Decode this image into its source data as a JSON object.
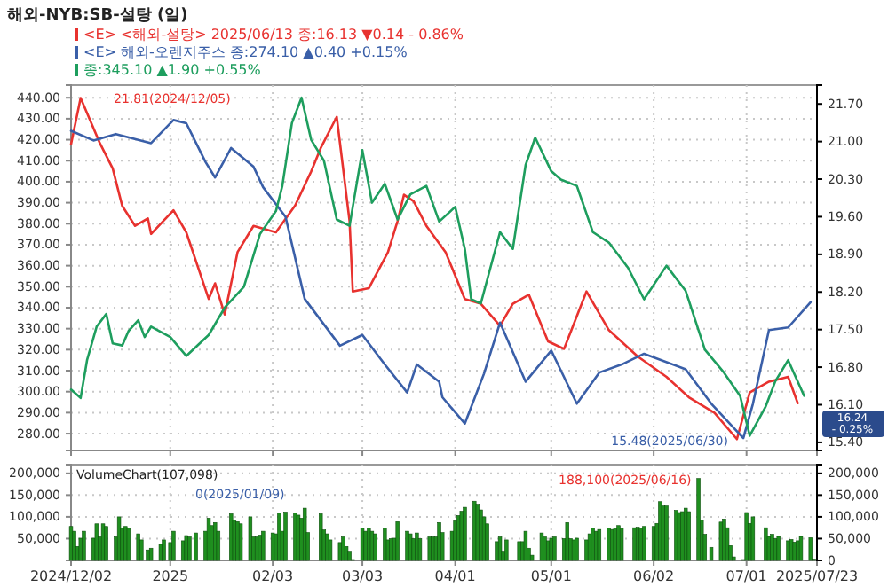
{
  "chart_data": [
    {
      "type": "line",
      "title": "해외-NYB:SB-설탕 (일)",
      "legend": "top left",
      "grid": true,
      "tick_labels": "y",
      "xlim": [
        "2024-12-02",
        "2025-07-23"
      ],
      "xticks": [
        {
          "value": "2024-12-02",
          "label": null
        },
        {
          "value": "2025-01-02",
          "label": null
        },
        {
          "value": "2025-02-03",
          "label": null
        },
        {
          "value": "2025-03-03",
          "label": null
        },
        {
          "value": "2025-04-01",
          "label": null
        },
        {
          "value": "2025-05-01",
          "label": null
        },
        {
          "value": "2025-06-02",
          "label": null
        },
        {
          "value": "2025-07-01",
          "label": null
        }
      ],
      "ylim": [
        272,
        446
      ],
      "yticks": [
        {
          "value": 280,
          "label": "280.00"
        },
        {
          "value": 290,
          "label": "290.00"
        },
        {
          "value": 300,
          "label": "300.00"
        },
        {
          "value": 310,
          "label": "310.00"
        },
        {
          "value": 320,
          "label": "320.00"
        },
        {
          "value": 330,
          "label": "330.00"
        },
        {
          "value": 340,
          "label": "340.00"
        },
        {
          "value": 350,
          "label": "350.00"
        },
        {
          "value": 360,
          "label": "360.00"
        },
        {
          "value": 370,
          "label": "370.00"
        },
        {
          "value": 380,
          "label": "380.00"
        },
        {
          "value": 390,
          "label": "390.00"
        },
        {
          "value": 400,
          "label": "400.00"
        },
        {
          "value": 410,
          "label": "410.00"
        },
        {
          "value": 420,
          "label": "420.00"
        },
        {
          "value": 430,
          "label": "430.00"
        },
        {
          "value": 440,
          "label": "440.00"
        }
      ],
      "y2lim": [
        15.25,
        22.05
      ],
      "y2ticks": [
        {
          "value": 15.4,
          "label": "15.40"
        },
        {
          "value": 16.1,
          "label": "16.10"
        },
        {
          "value": 16.8,
          "label": "16.80"
        },
        {
          "value": 17.5,
          "label": "17.50"
        },
        {
          "value": 18.2,
          "label": "18.20"
        },
        {
          "value": 18.9,
          "label": "18.90"
        },
        {
          "value": 19.6,
          "label": "19.60"
        },
        {
          "value": 20.3,
          "label": "20.30"
        },
        {
          "value": 21.0,
          "label": "21.00"
        },
        {
          "value": 21.7,
          "label": "21.70"
        }
      ],
      "series": [
        {
          "name": "<E> <해외-설탕> 2025/06/13 종:16.13 ▼0.14 - 0.86%",
          "color": "#e8322f",
          "axis": "y2",
          "x": [
            "2024-12-02",
            "2024-12-05",
            "2024-12-11",
            "2024-12-15",
            "2024-12-18",
            "2024-12-22",
            "2024-12-26",
            "2024-12-27",
            "2025-01-03",
            "2025-01-07",
            "2025-01-14",
            "2025-01-16",
            "2025-01-19",
            "2025-01-23",
            "2025-01-28",
            "2025-02-04",
            "2025-02-10",
            "2025-02-15",
            "2025-02-18",
            "2025-02-23",
            "2025-02-27",
            "2025-02-28",
            "2025-03-05",
            "2025-03-11",
            "2025-03-14",
            "2025-03-16",
            "2025-03-19",
            "2025-03-23",
            "2025-03-29",
            "2025-04-04",
            "2025-04-09",
            "2025-04-15",
            "2025-04-19",
            "2025-04-24",
            "2025-04-30",
            "2025-05-05",
            "2025-05-12",
            "2025-05-19",
            "2025-05-28",
            "2025-06-06",
            "2025-06-13",
            "2025-06-21",
            "2025-06-28",
            "2025-07-02",
            "2025-07-08",
            "2025-07-14",
            "2025-07-17"
          ],
          "values": [
            20.95,
            21.81,
            20.97,
            20.5,
            19.8,
            19.43,
            19.57,
            19.28,
            19.72,
            19.31,
            18.07,
            18.36,
            17.78,
            18.94,
            19.43,
            19.31,
            19.81,
            20.44,
            20.88,
            21.46,
            19.52,
            18.21,
            18.27,
            18.94,
            19.52,
            20.01,
            19.89,
            19.43,
            18.94,
            18.07,
            17.98,
            17.57,
            17.98,
            18.15,
            17.28,
            17.14,
            18.21,
            17.49,
            17.0,
            16.62,
            16.24,
            15.95,
            15.46,
            16.33,
            16.53,
            16.62,
            16.13
          ]
        },
        {
          "name": "<E> 해외-오렌지주스 종:274.10 ▲0.40 +0.15%",
          "color": "#3a5fa8",
          "axis": "y2",
          "x": [
            "2024-12-02",
            "2024-12-09",
            "2024-12-16",
            "2024-12-27",
            "2025-01-03",
            "2025-01-07",
            "2025-01-13",
            "2025-01-16",
            "2025-01-21",
            "2025-01-28",
            "2025-01-31",
            "2025-02-07",
            "2025-02-13",
            "2025-02-24",
            "2025-03-03",
            "2025-03-10",
            "2025-03-17",
            "2025-03-20",
            "2025-03-27",
            "2025-03-28",
            "2025-04-04",
            "2025-04-10",
            "2025-04-15",
            "2025-04-23",
            "2025-05-01",
            "2025-05-09",
            "2025-05-16",
            "2025-05-23",
            "2025-05-30",
            "2025-06-12",
            "2025-06-20",
            "2025-06-30",
            "2025-07-03",
            "2025-07-08",
            "2025-07-14",
            "2025-07-21"
          ],
          "values": [
            21.2,
            21.02,
            21.14,
            20.97,
            21.4,
            21.34,
            20.62,
            20.33,
            20.88,
            20.53,
            20.15,
            19.6,
            18.07,
            17.2,
            17.4,
            16.85,
            16.33,
            16.85,
            16.53,
            16.24,
            15.75,
            16.68,
            17.63,
            16.53,
            17.11,
            16.12,
            16.7,
            16.85,
            17.05,
            16.76,
            16.12,
            15.48,
            16.12,
            17.49,
            17.54,
            18.01
          ]
        },
        {
          "name": "종:345.10 ▲1.90 +0.55%",
          "color": "#1e9e5e",
          "axis": "y",
          "x": [
            "2024-12-02",
            "2024-12-05",
            "2024-12-07",
            "2024-12-10",
            "2024-12-13",
            "2024-12-15",
            "2024-12-18",
            "2024-12-20",
            "2024-12-23",
            "2024-12-25",
            "2024-12-27",
            "2025-01-02",
            "2025-01-07",
            "2025-01-14",
            "2025-01-19",
            "2025-01-25",
            "2025-01-30",
            "2025-02-04",
            "2025-02-06",
            "2025-02-09",
            "2025-02-12",
            "2025-02-15",
            "2025-02-19",
            "2025-02-23",
            "2025-02-27",
            "2025-03-03",
            "2025-03-06",
            "2025-03-10",
            "2025-03-14",
            "2025-03-18",
            "2025-03-23",
            "2025-03-27",
            "2025-04-01",
            "2025-04-04",
            "2025-04-06",
            "2025-04-09",
            "2025-04-12",
            "2025-04-15",
            "2025-04-19",
            "2025-04-23",
            "2025-04-26",
            "2025-05-01",
            "2025-05-04",
            "2025-05-09",
            "2025-05-14",
            "2025-05-19",
            "2025-05-25",
            "2025-05-30",
            "2025-06-06",
            "2025-06-12",
            "2025-06-18",
            "2025-06-24",
            "2025-06-29",
            "2025-07-02",
            "2025-07-07",
            "2025-07-10",
            "2025-07-14",
            "2025-07-19"
          ],
          "values": [
            301,
            297,
            315,
            331,
            337,
            323,
            322,
            329,
            334,
            326,
            331,
            326,
            317,
            327,
            340,
            350,
            375,
            386,
            398,
            428,
            440,
            420,
            410,
            382,
            379,
            415,
            390,
            399,
            382,
            394,
            398,
            381,
            388,
            368,
            344,
            342,
            359,
            376,
            368,
            408,
            421,
            405,
            401,
            398,
            376,
            371,
            359,
            344,
            360,
            348,
            320,
            309,
            298,
            279,
            293,
            305,
            315,
            298
          ]
        }
      ],
      "annotations": [
        "21.81(2024/12/05)",
        "15.48(2025/06/30)",
        "16.24 - 0.25%"
      ]
    },
    {
      "type": "bar",
      "grid": true,
      "color": "#1f8f1f",
      "xlim": [
        "2024-12-02",
        "2025-07-23"
      ],
      "xticks": [
        {
          "value": "2024-12-02",
          "label": "2024/12/02"
        },
        {
          "value": "2025-01-02",
          "label": "2025"
        },
        {
          "value": "2025-02-03",
          "label": "02/03"
        },
        {
          "value": "2025-03-03",
          "label": "03/03"
        },
        {
          "value": "2025-04-01",
          "label": "04/01"
        },
        {
          "value": "2025-05-01",
          "label": "05/01"
        },
        {
          "value": "2025-06-02",
          "label": "06/02"
        },
        {
          "value": "2025-07-01",
          "label": "07/01"
        },
        {
          "value": "2025-07-23",
          "label": "2025/07/23"
        }
      ],
      "ylim": [
        0,
        220000
      ],
      "yticks": [
        {
          "value": 50000,
          "label": "50,000"
        },
        {
          "value": 100000,
          "label": "100,000"
        },
        {
          "value": 150000,
          "label": "150,000"
        },
        {
          "value": 200000,
          "label": "200,000"
        }
      ],
      "y2lim": [
        0,
        220000
      ],
      "y2ticks": [
        {
          "value": 0,
          "label": "0"
        },
        {
          "value": 50000,
          "label": "50,000"
        },
        {
          "value": 100000,
          "label": "100,000"
        },
        {
          "value": 150000,
          "label": "150,000"
        },
        {
          "value": 200000,
          "label": "200,000"
        }
      ],
      "x": [
        "2024-12-02",
        "2024-12-03",
        "2024-12-04",
        "2024-12-05",
        "2024-12-06",
        "2024-12-09",
        "2024-12-10",
        "2024-12-11",
        "2024-12-12",
        "2024-12-13",
        "2024-12-16",
        "2024-12-17",
        "2024-12-18",
        "2024-12-19",
        "2024-12-20",
        "2024-12-23",
        "2024-12-24",
        "2024-12-26",
        "2024-12-27",
        "2024-12-30",
        "2024-12-31",
        "2025-01-02",
        "2025-01-03",
        "2025-01-06",
        "2025-01-07",
        "2025-01-08",
        "2025-01-09",
        "2025-01-10",
        "2025-01-13",
        "2025-01-14",
        "2025-01-15",
        "2025-01-16",
        "2025-01-17",
        "2025-01-21",
        "2025-01-22",
        "2025-01-23",
        "2025-01-24",
        "2025-01-27",
        "2025-01-28",
        "2025-01-29",
        "2025-01-30",
        "2025-01-31",
        "2025-02-03",
        "2025-02-04",
        "2025-02-05",
        "2025-02-06",
        "2025-02-07",
        "2025-02-10",
        "2025-02-11",
        "2025-02-12",
        "2025-02-13",
        "2025-02-14",
        "2025-02-18",
        "2025-02-19",
        "2025-02-20",
        "2025-02-21",
        "2025-02-24",
        "2025-02-25",
        "2025-02-26",
        "2025-02-27",
        "2025-02-28",
        "2025-03-03",
        "2025-03-04",
        "2025-03-05",
        "2025-03-06",
        "2025-03-07",
        "2025-03-10",
        "2025-03-11",
        "2025-03-12",
        "2025-03-13",
        "2025-03-14",
        "2025-03-17",
        "2025-03-18",
        "2025-03-19",
        "2025-03-20",
        "2025-03-21",
        "2025-03-24",
        "2025-03-25",
        "2025-03-26",
        "2025-03-27",
        "2025-03-28",
        "2025-03-31",
        "2025-04-01",
        "2025-04-02",
        "2025-04-03",
        "2025-04-04",
        "2025-04-07",
        "2025-04-08",
        "2025-04-09",
        "2025-04-10",
        "2025-04-11",
        "2025-04-14",
        "2025-04-15",
        "2025-04-16",
        "2025-04-17",
        "2025-04-21",
        "2025-04-22",
        "2025-04-23",
        "2025-04-24",
        "2025-04-25",
        "2025-04-28",
        "2025-04-29",
        "2025-04-30",
        "2025-05-01",
        "2025-05-02",
        "2025-05-05",
        "2025-05-06",
        "2025-05-07",
        "2025-05-08",
        "2025-05-09",
        "2025-05-12",
        "2025-05-13",
        "2025-05-14",
        "2025-05-15",
        "2025-05-16",
        "2025-05-19",
        "2025-05-20",
        "2025-05-21",
        "2025-05-22",
        "2025-05-23",
        "2025-05-27",
        "2025-05-28",
        "2025-05-29",
        "2025-05-30",
        "2025-06-02",
        "2025-06-03",
        "2025-06-04",
        "2025-06-05",
        "2025-06-06",
        "2025-06-09",
        "2025-06-10",
        "2025-06-11",
        "2025-06-12",
        "2025-06-13",
        "2025-06-16",
        "2025-06-17",
        "2025-06-18",
        "2025-06-20",
        "2025-06-23",
        "2025-06-24",
        "2025-06-25",
        "2025-06-26",
        "2025-06-27",
        "2025-06-30",
        "2025-07-01",
        "2025-07-02",
        "2025-07-03",
        "2025-07-07",
        "2025-07-08",
        "2025-07-09",
        "2025-07-10",
        "2025-07-11",
        "2025-07-14",
        "2025-07-15",
        "2025-07-16",
        "2025-07-17",
        "2025-07-18",
        "2025-07-21",
        "2025-07-22"
      ],
      "values": [
        78000,
        67000,
        32000,
        51000,
        67000,
        51000,
        84000,
        54000,
        84000,
        78000,
        54000,
        100000,
        74000,
        78000,
        74000,
        61000,
        47000,
        24000,
        28000,
        37000,
        47000,
        41000,
        67000,
        45000,
        57000,
        54000,
        0,
        63000,
        67000,
        97000,
        80000,
        87000,
        67000,
        107000,
        93000,
        89000,
        84000,
        100000,
        54000,
        54000,
        58000,
        67000,
        63000,
        61000,
        109000,
        67000,
        111000,
        109000,
        104000,
        97000,
        120000,
        64000,
        107000,
        70000,
        61000,
        47000,
        41000,
        54000,
        32000,
        21000,
        2000,
        74000,
        67000,
        74000,
        67000,
        61000,
        74000,
        47000,
        50000,
        51000,
        89000,
        67000,
        61000,
        50000,
        63000,
        50000,
        54000,
        54000,
        54000,
        87000,
        64000,
        67000,
        91000,
        103000,
        113000,
        122000,
        136000,
        129000,
        116000,
        100000,
        84000,
        43000,
        54000,
        21000,
        47000,
        43000,
        43000,
        67000,
        28000,
        12000,
        63000,
        54000,
        45000,
        51000,
        54000,
        50000,
        87000,
        50000,
        47000,
        51000,
        47000,
        61000,
        74000,
        67000,
        71000,
        74000,
        71000,
        74000,
        80000,
        74000,
        75000,
        76000,
        74000,
        78000,
        78000,
        85000,
        135000,
        125000,
        125000,
        115000,
        110000,
        112000,
        120000,
        112000,
        188100,
        93000,
        60000,
        30000,
        88000,
        95000,
        75000,
        34000,
        8000,
        2000,
        110000,
        85000,
        100000,
        75000,
        55000,
        60000,
        50000,
        55000,
        45000,
        48000,
        42000,
        45000,
        55000,
        52000,
        3000
      ],
      "annotations": [
        "VolumeChart(107,098)",
        "0(2025/01/09)",
        {
          "text": "188,100(2025/06/16)",
          "x": "2025-06-16",
          "y": 188100
        }
      ]
    }
  ]
}
